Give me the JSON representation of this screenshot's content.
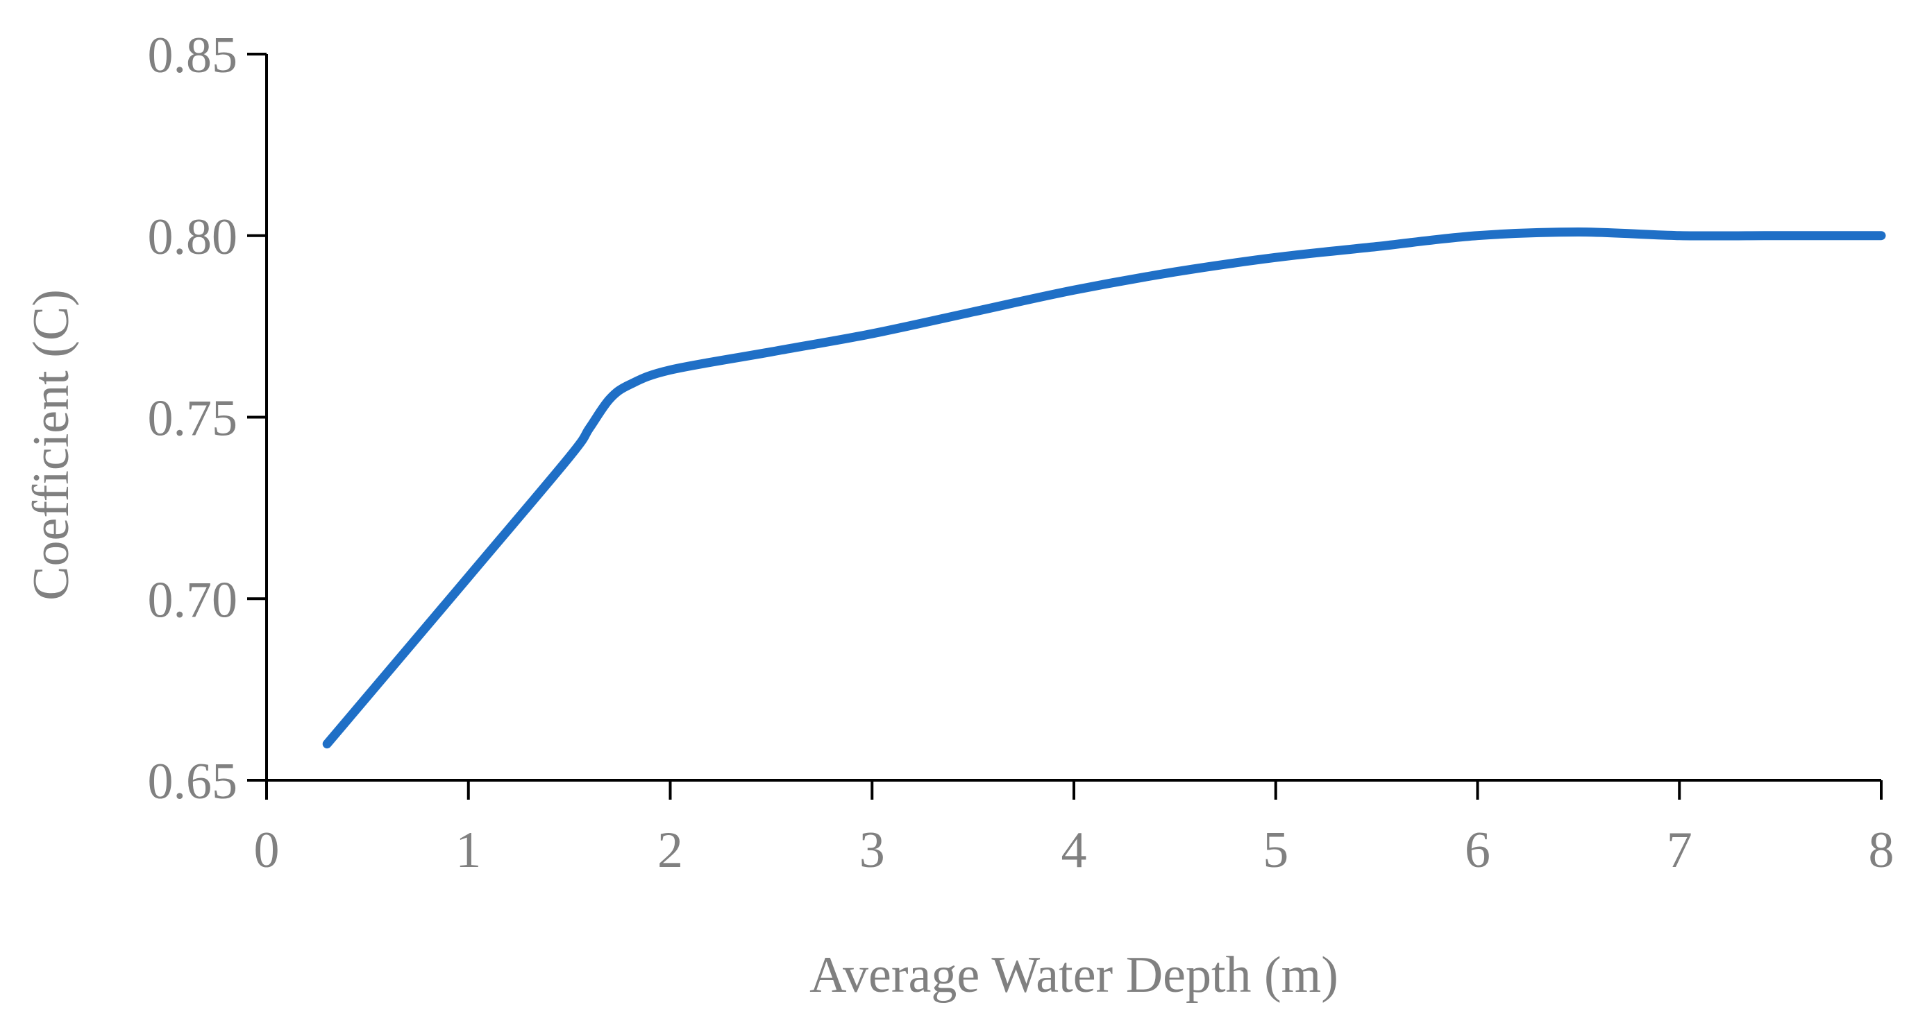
{
  "chart_data": {
    "type": "line",
    "title": "",
    "xlabel": "Average Water Depth (m)",
    "ylabel": "Coefficient (C)",
    "xlim": [
      0,
      8
    ],
    "ylim": [
      0.65,
      0.85
    ],
    "xticks": [
      0,
      1,
      2,
      3,
      4,
      5,
      6,
      7,
      8
    ],
    "xtick_labels": [
      "0",
      "1",
      "2",
      "3",
      "4",
      "5",
      "6",
      "7",
      "8"
    ],
    "yticks": [
      0.65,
      0.7,
      0.75,
      0.8,
      0.85
    ],
    "ytick_labels": [
      "0.65",
      "0.70",
      "0.75",
      "0.80",
      "0.85"
    ],
    "grid": false,
    "legend": "none",
    "series": [
      {
        "name": "C",
        "color": "#1f6fc6",
        "x": [
          0.3,
          1.0,
          1.5,
          1.6,
          1.7,
          1.8,
          2.0,
          2.5,
          3.0,
          3.5,
          4.0,
          4.5,
          5.0,
          5.5,
          6.0,
          6.5,
          7.0,
          7.5,
          8.0
        ],
        "y": [
          0.66,
          0.706,
          0.739,
          0.747,
          0.755,
          0.759,
          0.763,
          0.768,
          0.773,
          0.779,
          0.785,
          0.79,
          0.794,
          0.797,
          0.8,
          0.801,
          0.8,
          0.8,
          0.8
        ]
      }
    ]
  }
}
